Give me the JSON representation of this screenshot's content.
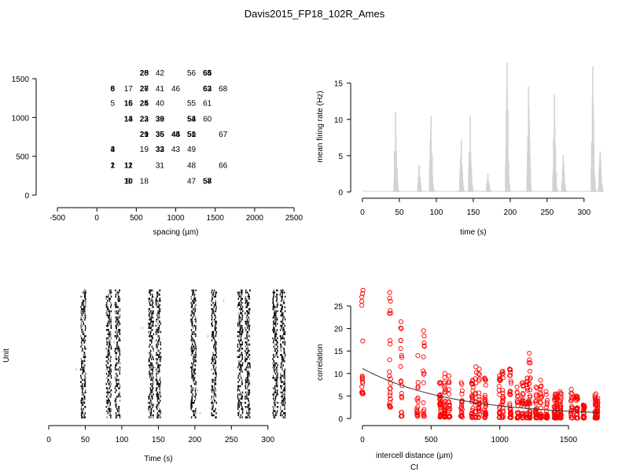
{
  "title": "Davis2015_FP18_102R_Ames",
  "chart_data": [
    {
      "type": "scatter",
      "id": "electrode-layout",
      "xlabel": "spacing (µm)",
      "ylabel": "",
      "xlim": [
        -500,
        2500
      ],
      "ylim": [
        0,
        1500
      ],
      "xticks": [
        -500,
        0,
        500,
        1000,
        1500,
        2000,
        2500
      ],
      "yticks": [
        0,
        500,
        1000,
        1500
      ],
      "labels": [
        {
          "x": 600,
          "y": 1580,
          "text": "20"
        },
        {
          "x": 600,
          "y": 1580,
          "text": "28"
        },
        {
          "x": 800,
          "y": 1580,
          "text": "42"
        },
        {
          "x": 1200,
          "y": 1580,
          "text": "56"
        },
        {
          "x": 1400,
          "y": 1580,
          "text": "64"
        },
        {
          "x": 1400,
          "y": 1580,
          "text": "65"
        },
        {
          "x": 200,
          "y": 1380,
          "text": "6"
        },
        {
          "x": 200,
          "y": 1380,
          "text": "8"
        },
        {
          "x": 400,
          "y": 1380,
          "text": "17"
        },
        {
          "x": 600,
          "y": 1380,
          "text": "26"
        },
        {
          "x": 600,
          "y": 1380,
          "text": "27"
        },
        {
          "x": 800,
          "y": 1380,
          "text": "41"
        },
        {
          "x": 1000,
          "y": 1380,
          "text": "46"
        },
        {
          "x": 1400,
          "y": 1380,
          "text": "62"
        },
        {
          "x": 1400,
          "y": 1380,
          "text": "63"
        },
        {
          "x": 1600,
          "y": 1380,
          "text": "68"
        },
        {
          "x": 200,
          "y": 1190,
          "text": "5"
        },
        {
          "x": 400,
          "y": 1190,
          "text": "15"
        },
        {
          "x": 400,
          "y": 1190,
          "text": "16"
        },
        {
          "x": 600,
          "y": 1190,
          "text": "24"
        },
        {
          "x": 600,
          "y": 1190,
          "text": "25"
        },
        {
          "x": 800,
          "y": 1190,
          "text": "40"
        },
        {
          "x": 1200,
          "y": 1190,
          "text": "55"
        },
        {
          "x": 1400,
          "y": 1190,
          "text": "61"
        },
        {
          "x": 400,
          "y": 990,
          "text": "13"
        },
        {
          "x": 400,
          "y": 990,
          "text": "14"
        },
        {
          "x": 600,
          "y": 990,
          "text": "22"
        },
        {
          "x": 600,
          "y": 990,
          "text": "23"
        },
        {
          "x": 800,
          "y": 990,
          "text": "38"
        },
        {
          "x": 800,
          "y": 990,
          "text": "39"
        },
        {
          "x": 1200,
          "y": 990,
          "text": "53"
        },
        {
          "x": 1200,
          "y": 990,
          "text": "54"
        },
        {
          "x": 1400,
          "y": 990,
          "text": "60"
        },
        {
          "x": 600,
          "y": 790,
          "text": "21"
        },
        {
          "x": 600,
          "y": 790,
          "text": "29"
        },
        {
          "x": 800,
          "y": 790,
          "text": "36"
        },
        {
          "x": 800,
          "y": 790,
          "text": "35"
        },
        {
          "x": 1000,
          "y": 790,
          "text": "45"
        },
        {
          "x": 1000,
          "y": 790,
          "text": "44"
        },
        {
          "x": 1200,
          "y": 790,
          "text": "50"
        },
        {
          "x": 1200,
          "y": 790,
          "text": "51"
        },
        {
          "x": 1600,
          "y": 790,
          "text": "67"
        },
        {
          "x": 200,
          "y": 600,
          "text": "3"
        },
        {
          "x": 200,
          "y": 600,
          "text": "4"
        },
        {
          "x": 600,
          "y": 600,
          "text": "19"
        },
        {
          "x": 800,
          "y": 600,
          "text": "32"
        },
        {
          "x": 800,
          "y": 600,
          "text": "33"
        },
        {
          "x": 1000,
          "y": 600,
          "text": "43"
        },
        {
          "x": 1200,
          "y": 600,
          "text": "49"
        },
        {
          "x": 200,
          "y": 390,
          "text": "2"
        },
        {
          "x": 200,
          "y": 390,
          "text": "1"
        },
        {
          "x": 400,
          "y": 390,
          "text": "12"
        },
        {
          "x": 400,
          "y": 390,
          "text": "11"
        },
        {
          "x": 800,
          "y": 390,
          "text": "31"
        },
        {
          "x": 1200,
          "y": 390,
          "text": "48"
        },
        {
          "x": 1600,
          "y": 390,
          "text": "66"
        },
        {
          "x": 400,
          "y": 190,
          "text": "9"
        },
        {
          "x": 400,
          "y": 190,
          "text": "10"
        },
        {
          "x": 600,
          "y": 190,
          "text": "18"
        },
        {
          "x": 1200,
          "y": 190,
          "text": "47"
        },
        {
          "x": 1400,
          "y": 190,
          "text": "57"
        },
        {
          "x": 1400,
          "y": 190,
          "text": "58"
        }
      ]
    },
    {
      "type": "bar",
      "id": "mean-firing-rate",
      "xlabel": "time (s)",
      "ylabel": "mean firing rate (Hz)",
      "xlim": [
        0,
        330
      ],
      "ylim": [
        0,
        18
      ],
      "xticks": [
        0,
        50,
        100,
        150,
        200,
        250,
        300
      ],
      "yticks": [
        0,
        5,
        10,
        15
      ],
      "color": "#d3d3d3",
      "bursts": [
        {
          "t": 45,
          "peak": 11
        },
        {
          "t": 77,
          "peak": 3.7
        },
        {
          "t": 93,
          "peak": 10.5
        },
        {
          "t": 134,
          "peak": 7.2
        },
        {
          "t": 146,
          "peak": 10.5
        },
        {
          "t": 170,
          "peak": 2.5
        },
        {
          "t": 196,
          "peak": 17.8
        },
        {
          "t": 225,
          "peak": 14.5
        },
        {
          "t": 260,
          "peak": 13.4
        },
        {
          "t": 272,
          "peak": 5.1
        },
        {
          "t": 312,
          "peak": 17.3
        },
        {
          "t": 322,
          "peak": 5.6
        }
      ]
    },
    {
      "type": "scatter",
      "id": "raster",
      "xlabel": "Time (s)",
      "ylabel": "Unit",
      "xlim": [
        0,
        325
      ],
      "xticks": [
        0,
        50,
        100,
        150,
        200,
        250,
        300
      ],
      "burst_times": [
        45,
        80,
        92,
        138,
        148,
        196,
        224,
        260,
        270,
        308,
        318
      ]
    },
    {
      "type": "scatter",
      "id": "correlation-vs-distance",
      "xlabel": "intercell distance (µm)",
      "ylabel": "correlation",
      "subtitle": "CI",
      "xlim": [
        0,
        1720
      ],
      "ylim": [
        0,
        28
      ],
      "xticks": [
        0,
        500,
        1000,
        1500
      ],
      "yticks": [
        0,
        5,
        10,
        15,
        20,
        25
      ],
      "color": "#ff0000",
      "fit": {
        "a": 10.5,
        "b": 0.00155,
        "c": 0.6
      },
      "columns": [
        {
          "x": 0,
          "min": 5.5,
          "max": 28.5
        },
        {
          "x": 200,
          "min": 2.5,
          "max": 28
        },
        {
          "x": 283,
          "min": 0.5,
          "max": 21.5
        },
        {
          "x": 400,
          "min": 0.5,
          "max": 14
        },
        {
          "x": 447,
          "min": 0.5,
          "max": 19.5
        },
        {
          "x": 566,
          "min": 0.3,
          "max": 8
        },
        {
          "x": 600,
          "min": 0.3,
          "max": 10
        },
        {
          "x": 632,
          "min": 0.3,
          "max": 9.5
        },
        {
          "x": 721,
          "min": 0.3,
          "max": 8
        },
        {
          "x": 800,
          "min": 0.2,
          "max": 8.5
        },
        {
          "x": 825,
          "min": 0.2,
          "max": 11.5
        },
        {
          "x": 849,
          "min": 0.2,
          "max": 11
        },
        {
          "x": 894,
          "min": 0.2,
          "max": 9
        },
        {
          "x": 1000,
          "min": 0.2,
          "max": 9.5
        },
        {
          "x": 1020,
          "min": 0.2,
          "max": 10.5
        },
        {
          "x": 1077,
          "min": 0.2,
          "max": 11
        },
        {
          "x": 1131,
          "min": 0.1,
          "max": 7
        },
        {
          "x": 1166,
          "min": 0.1,
          "max": 8
        },
        {
          "x": 1200,
          "min": 0.1,
          "max": 9
        },
        {
          "x": 1217,
          "min": 0.1,
          "max": 14.5
        },
        {
          "x": 1265,
          "min": 0.1,
          "max": 7
        },
        {
          "x": 1300,
          "min": 0.1,
          "max": 8.5
        },
        {
          "x": 1342,
          "min": 0.1,
          "max": 6
        },
        {
          "x": 1400,
          "min": 0.1,
          "max": 5.5
        },
        {
          "x": 1414,
          "min": 0.1,
          "max": 5
        },
        {
          "x": 1442,
          "min": 0.1,
          "max": 6
        },
        {
          "x": 1523,
          "min": 0.1,
          "max": 6.5
        },
        {
          "x": 1562,
          "min": 0.1,
          "max": 5
        },
        {
          "x": 1612,
          "min": 0.1,
          "max": 3
        },
        {
          "x": 1697,
          "min": 0.1,
          "max": 5.5
        },
        {
          "x": 1709,
          "min": 0.1,
          "max": 4.5
        }
      ]
    }
  ]
}
